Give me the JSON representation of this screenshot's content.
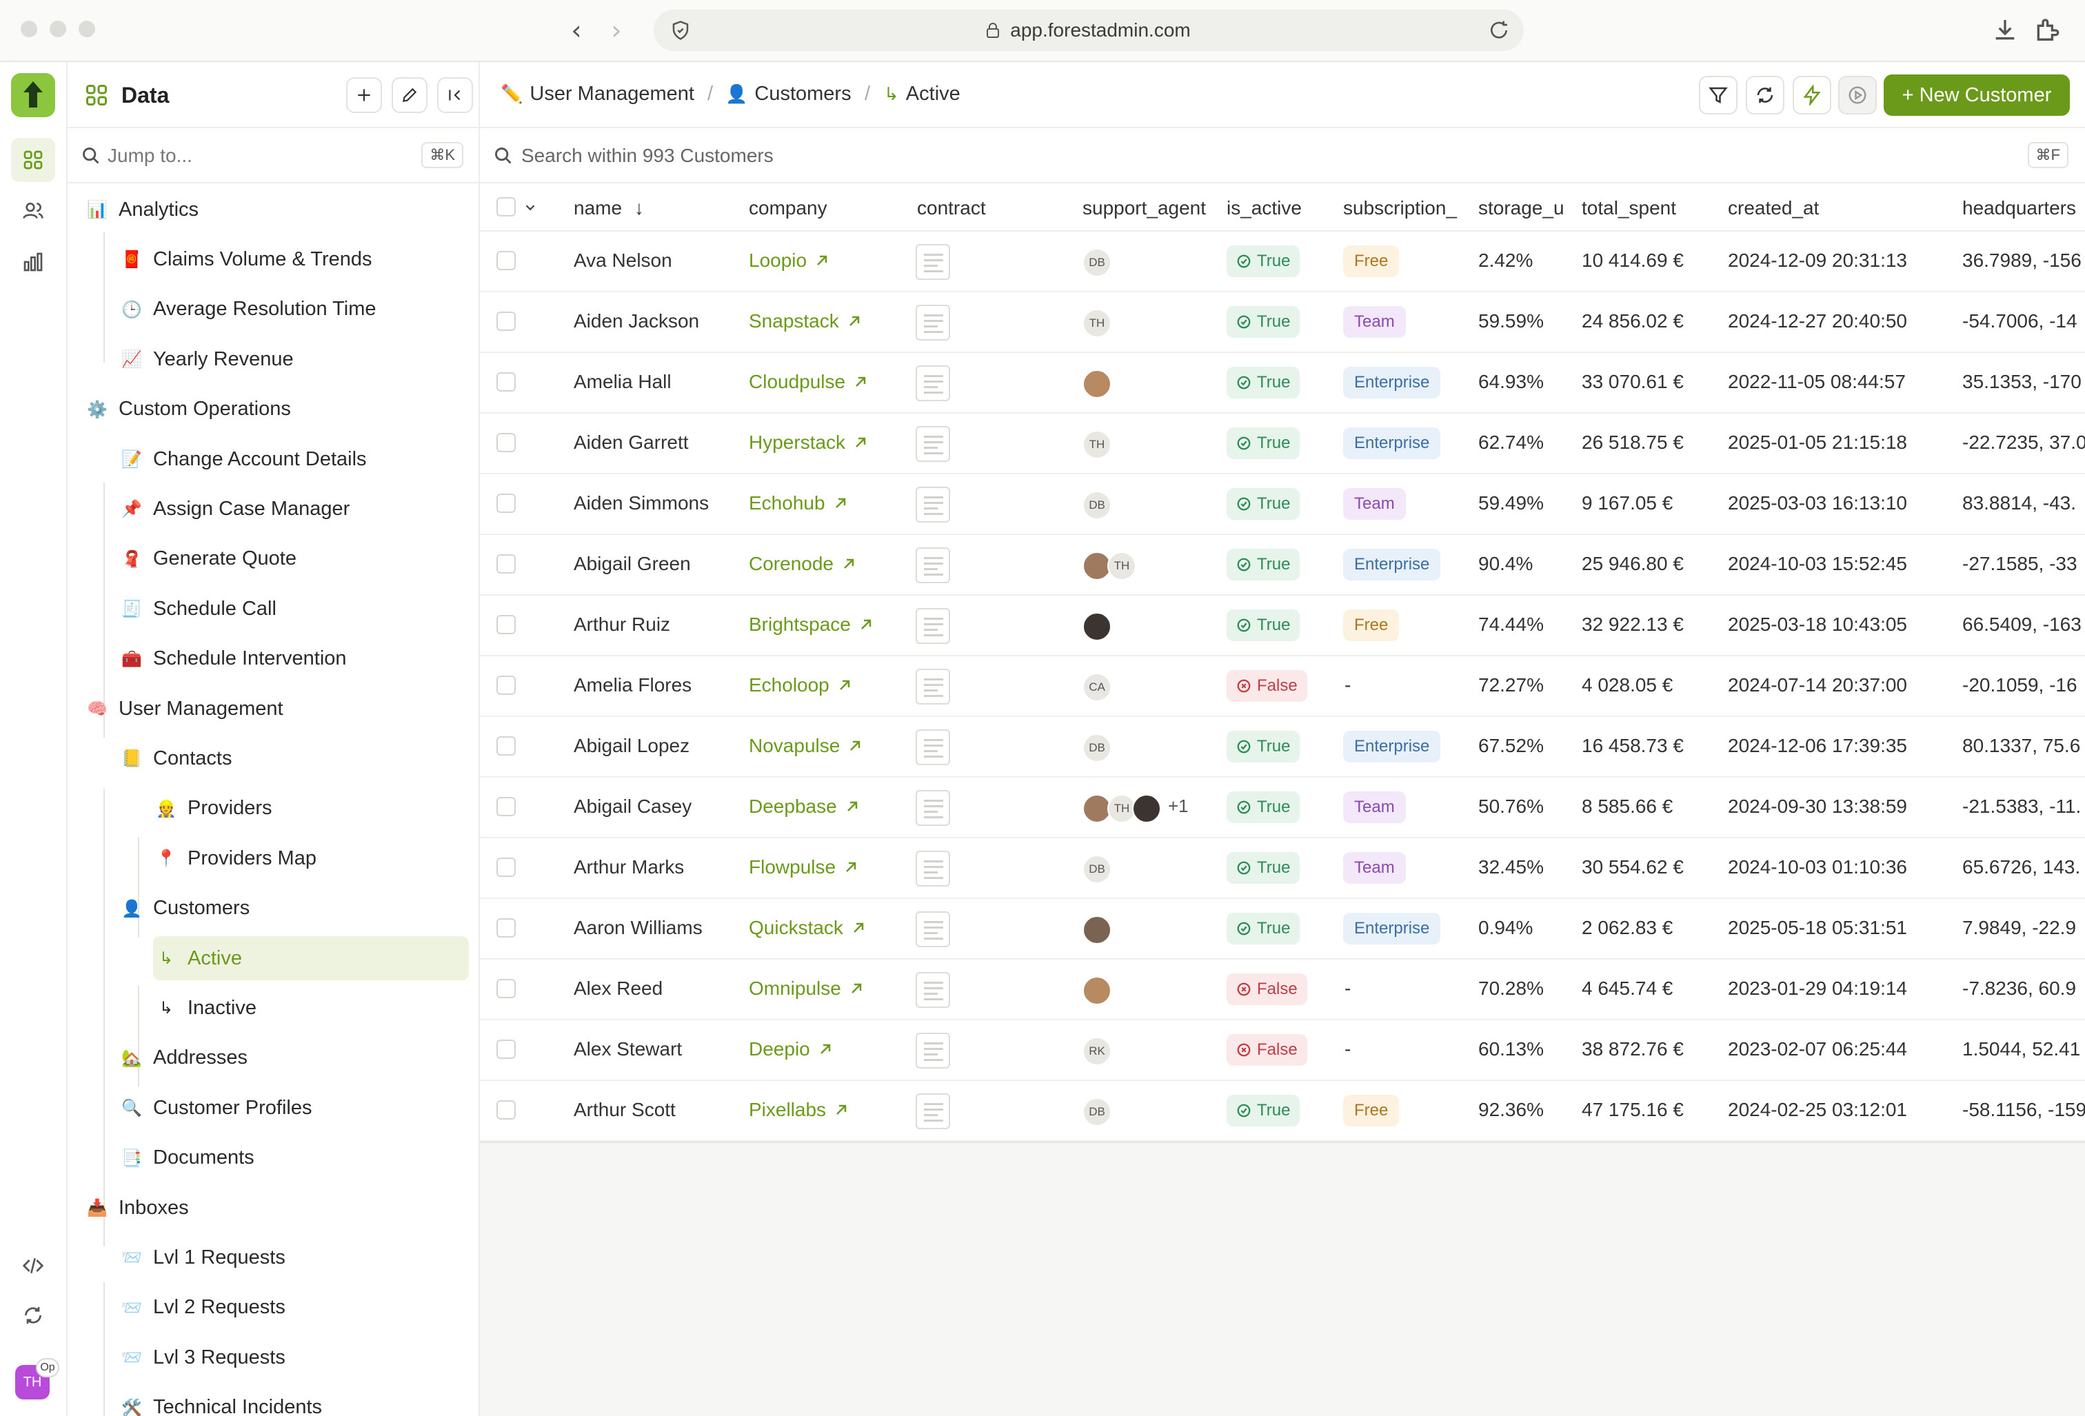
{
  "browser": {
    "url": "app.forestadmin.com"
  },
  "sidebar": {
    "title": "Data",
    "jump_placeholder": "Jump to...",
    "jump_shortcut": "⌘K",
    "items": [
      {
        "label": "Analytics",
        "emoji": "📊",
        "level": 0
      },
      {
        "label": "Claims Volume & Trends",
        "emoji": "🧧",
        "level": 1
      },
      {
        "label": "Average Resolution Time",
        "emoji": "🕒",
        "level": 1
      },
      {
        "label": "Yearly Revenue",
        "emoji": "📈",
        "level": 1
      },
      {
        "label": "Custom Operations",
        "emoji": "⚙️",
        "level": 0
      },
      {
        "label": "Change Account Details",
        "emoji": "📝",
        "level": 1
      },
      {
        "label": "Assign Case Manager",
        "emoji": "📌",
        "level": 1
      },
      {
        "label": "Generate Quote",
        "emoji": "🧣",
        "level": 1
      },
      {
        "label": "Schedule Call",
        "emoji": "🧾",
        "level": 1
      },
      {
        "label": "Schedule Intervention",
        "emoji": "🧰",
        "level": 1
      },
      {
        "label": "User Management",
        "emoji": "🧠",
        "level": 0
      },
      {
        "label": "Contacts",
        "emoji": "📒",
        "level": 1
      },
      {
        "label": "Providers",
        "emoji": "👷",
        "level": 2
      },
      {
        "label": "Providers Map",
        "emoji": "📍",
        "level": 2
      },
      {
        "label": "Customers",
        "emoji": "👤",
        "level": 1
      },
      {
        "label": "Active",
        "emoji": "↳",
        "level": 2,
        "active": true
      },
      {
        "label": "Inactive",
        "emoji": "↳",
        "level": 2
      },
      {
        "label": "Addresses",
        "emoji": "🏡",
        "level": 1
      },
      {
        "label": "Customer Profiles",
        "emoji": "🔍",
        "level": 1
      },
      {
        "label": "Documents",
        "emoji": "📑",
        "level": 1
      },
      {
        "label": "Inboxes",
        "emoji": "📥",
        "level": 0
      },
      {
        "label": "Lvl 1 Requests",
        "emoji": "📨",
        "level": 1
      },
      {
        "label": "Lvl 2 Requests",
        "emoji": "📨",
        "level": 1
      },
      {
        "label": "Lvl 3 Requests",
        "emoji": "📨",
        "level": 1
      },
      {
        "label": "Technical Incidents",
        "emoji": "🛠️",
        "level": 1
      }
    ]
  },
  "rail": {
    "avatar_initials": "TH",
    "avatar_badge": "Op"
  },
  "breadcrumb": {
    "items": [
      {
        "label": "User Management",
        "emoji": "✏️"
      },
      {
        "label": "Customers",
        "emoji": "👤"
      },
      {
        "label": "Active",
        "emoji": "↳"
      }
    ],
    "separator": "/"
  },
  "toolbar": {
    "new_button_label": "+ New Customer"
  },
  "search": {
    "placeholder": "Search within 993 Customers",
    "shortcut": "⌘F"
  },
  "table": {
    "columns": [
      "name",
      "company",
      "contract",
      "support_agent",
      "is_active",
      "subscription_",
      "storage_u",
      "total_spent",
      "created_at",
      "headquarters"
    ],
    "sort_indicator": "↓",
    "rows": [
      {
        "name": "Ava Nelson",
        "company": "Loopio",
        "agents": [
          "DB"
        ],
        "is_active": "True",
        "subscription": "Free",
        "storage": "2.42%",
        "total_spent": "10 414.69 €",
        "created_at": "2024-12-09 20:31:13",
        "hq": "36.7989, -156"
      },
      {
        "name": "Aiden Jackson",
        "company": "Snapstack",
        "agents": [
          "TH"
        ],
        "is_active": "True",
        "subscription": "Team",
        "storage": "59.59%",
        "total_spent": "24 856.02 €",
        "created_at": "2024-12-27 20:40:50",
        "hq": "-54.7006, -14"
      },
      {
        "name": "Amelia Hall",
        "company": "Cloudpulse",
        "agents": [
          "photo1"
        ],
        "is_active": "True",
        "subscription": "Enterprise",
        "storage": "64.93%",
        "total_spent": "33 070.61 €",
        "created_at": "2022-11-05 08:44:57",
        "hq": "35.1353, -170"
      },
      {
        "name": "Aiden Garrett",
        "company": "Hyperstack",
        "agents": [
          "TH"
        ],
        "is_active": "True",
        "subscription": "Enterprise",
        "storage": "62.74%",
        "total_spent": "26 518.75 €",
        "created_at": "2025-01-05 21:15:18",
        "hq": "-22.7235, 37.0"
      },
      {
        "name": "Aiden Simmons",
        "company": "Echohub",
        "agents": [
          "DB"
        ],
        "is_active": "True",
        "subscription": "Team",
        "storage": "59.49%",
        "total_spent": "9 167.05 €",
        "created_at": "2025-03-03 16:13:10",
        "hq": "83.8814, -43."
      },
      {
        "name": "Abigail Green",
        "company": "Corenode",
        "agents": [
          "photo4",
          "TH"
        ],
        "is_active": "True",
        "subscription": "Enterprise",
        "storage": "90.4%",
        "total_spent": "25 946.80 €",
        "created_at": "2024-10-03 15:52:45",
        "hq": "-27.1585, -33"
      },
      {
        "name": "Arthur Ruiz",
        "company": "Brightspace",
        "agents": [
          "photo3"
        ],
        "is_active": "True",
        "subscription": "Free",
        "storage": "74.44%",
        "total_spent": "32 922.13 €",
        "created_at": "2025-03-18 10:43:05",
        "hq": "66.5409, -163"
      },
      {
        "name": "Amelia Flores",
        "company": "Echoloop",
        "agents": [
          "CA"
        ],
        "is_active": "False",
        "subscription": "-",
        "storage": "72.27%",
        "total_spent": "4 028.05 €",
        "created_at": "2024-07-14 20:37:00",
        "hq": "-20.1059, -16"
      },
      {
        "name": "Abigail Lopez",
        "company": "Novapulse",
        "agents": [
          "DB"
        ],
        "is_active": "True",
        "subscription": "Enterprise",
        "storage": "67.52%",
        "total_spent": "16 458.73 €",
        "created_at": "2024-12-06 17:39:35",
        "hq": "80.1337, 75.6"
      },
      {
        "name": "Abigail Casey",
        "company": "Deepbase",
        "agents": [
          "photo4",
          "TH",
          "photo3"
        ],
        "extra_agents": "+1",
        "is_active": "True",
        "subscription": "Team",
        "storage": "50.76%",
        "total_spent": "8 585.66 €",
        "created_at": "2024-09-30 13:38:59",
        "hq": "-21.5383, -11."
      },
      {
        "name": "Arthur Marks",
        "company": "Flowpulse",
        "agents": [
          "DB"
        ],
        "is_active": "True",
        "subscription": "Team",
        "storage": "32.45%",
        "total_spent": "30 554.62 €",
        "created_at": "2024-10-03 01:10:36",
        "hq": "65.6726, 143."
      },
      {
        "name": "Aaron Williams",
        "company": "Quickstack",
        "agents": [
          "photo2"
        ],
        "is_active": "True",
        "subscription": "Enterprise",
        "storage": "0.94%",
        "total_spent": "2 062.83 €",
        "created_at": "2025-05-18 05:31:51",
        "hq": "7.9849, -22.9"
      },
      {
        "name": "Alex Reed",
        "company": "Omnipulse",
        "agents": [
          "photo1"
        ],
        "is_active": "False",
        "subscription": "-",
        "storage": "70.28%",
        "total_spent": "4 645.74 €",
        "created_at": "2023-01-29 04:19:14",
        "hq": "-7.8236, 60.9"
      },
      {
        "name": "Alex Stewart",
        "company": "Deepio",
        "agents": [
          "RK"
        ],
        "is_active": "False",
        "subscription": "-",
        "storage": "60.13%",
        "total_spent": "38 872.76 €",
        "created_at": "2023-02-07 06:25:44",
        "hq": "1.5044, 52.41"
      },
      {
        "name": "Arthur Scott",
        "company": "Pixellabs",
        "agents": [
          "DB"
        ],
        "is_active": "True",
        "subscription": "Free",
        "storage": "92.36%",
        "total_spent": "47 175.16 €",
        "created_at": "2024-02-25 03:12:01",
        "hq": "-58.1156, -159"
      }
    ]
  },
  "colors": {
    "brand": "#8cc63f",
    "accent": "#6b9a1b"
  }
}
